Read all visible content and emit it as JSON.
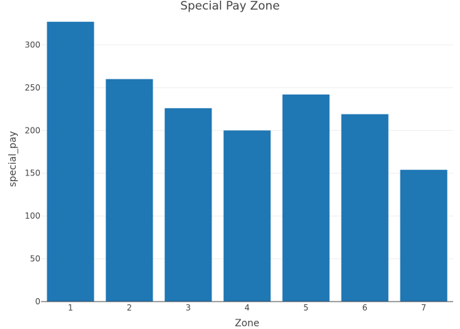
{
  "chart_data": {
    "type": "bar",
    "title": "Special Pay Zone",
    "xlabel": "Zone",
    "ylabel": "special_pay",
    "categories": [
      "1",
      "2",
      "3",
      "4",
      "5",
      "6",
      "7"
    ],
    "values": [
      327,
      260,
      226,
      200,
      242,
      219,
      154
    ],
    "ylim": [
      0,
      330
    ],
    "yticks": [
      0,
      50,
      100,
      150,
      200,
      250,
      300
    ],
    "grid": "horizontal",
    "bar_color": "#1f77b4"
  }
}
